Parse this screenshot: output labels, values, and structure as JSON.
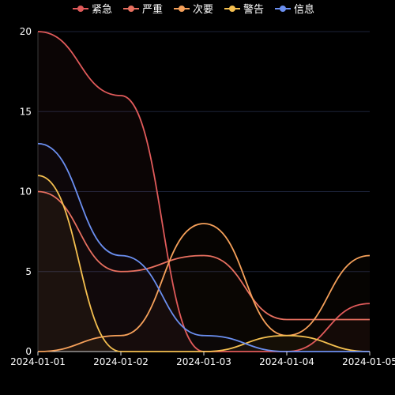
{
  "chart_data": {
    "type": "line",
    "x": [
      "2024-01-01",
      "2024-01-02",
      "2024-01-03",
      "2024-01-04",
      "2024-01-05"
    ],
    "ylim": [
      0,
      20
    ],
    "yticks": [
      0,
      5,
      10,
      15,
      20
    ],
    "grid": true,
    "legend_position": "top",
    "series": [
      {
        "name": "紧急",
        "color": "#e05a5a",
        "values": [
          20,
          16,
          0,
          0,
          3
        ],
        "fill": true
      },
      {
        "name": "严重",
        "color": "#e87060",
        "values": [
          10,
          5,
          6,
          2,
          2
        ],
        "fill": false
      },
      {
        "name": "次要",
        "color": "#f5a05a",
        "values": [
          0,
          1,
          8,
          1,
          6
        ],
        "fill": false
      },
      {
        "name": "警告",
        "color": "#f5c050",
        "values": [
          11,
          0,
          0,
          1,
          0
        ],
        "fill": true
      },
      {
        "name": "信息",
        "color": "#6b8ff0",
        "values": [
          13,
          6,
          1,
          0,
          0
        ],
        "fill": false
      }
    ]
  }
}
